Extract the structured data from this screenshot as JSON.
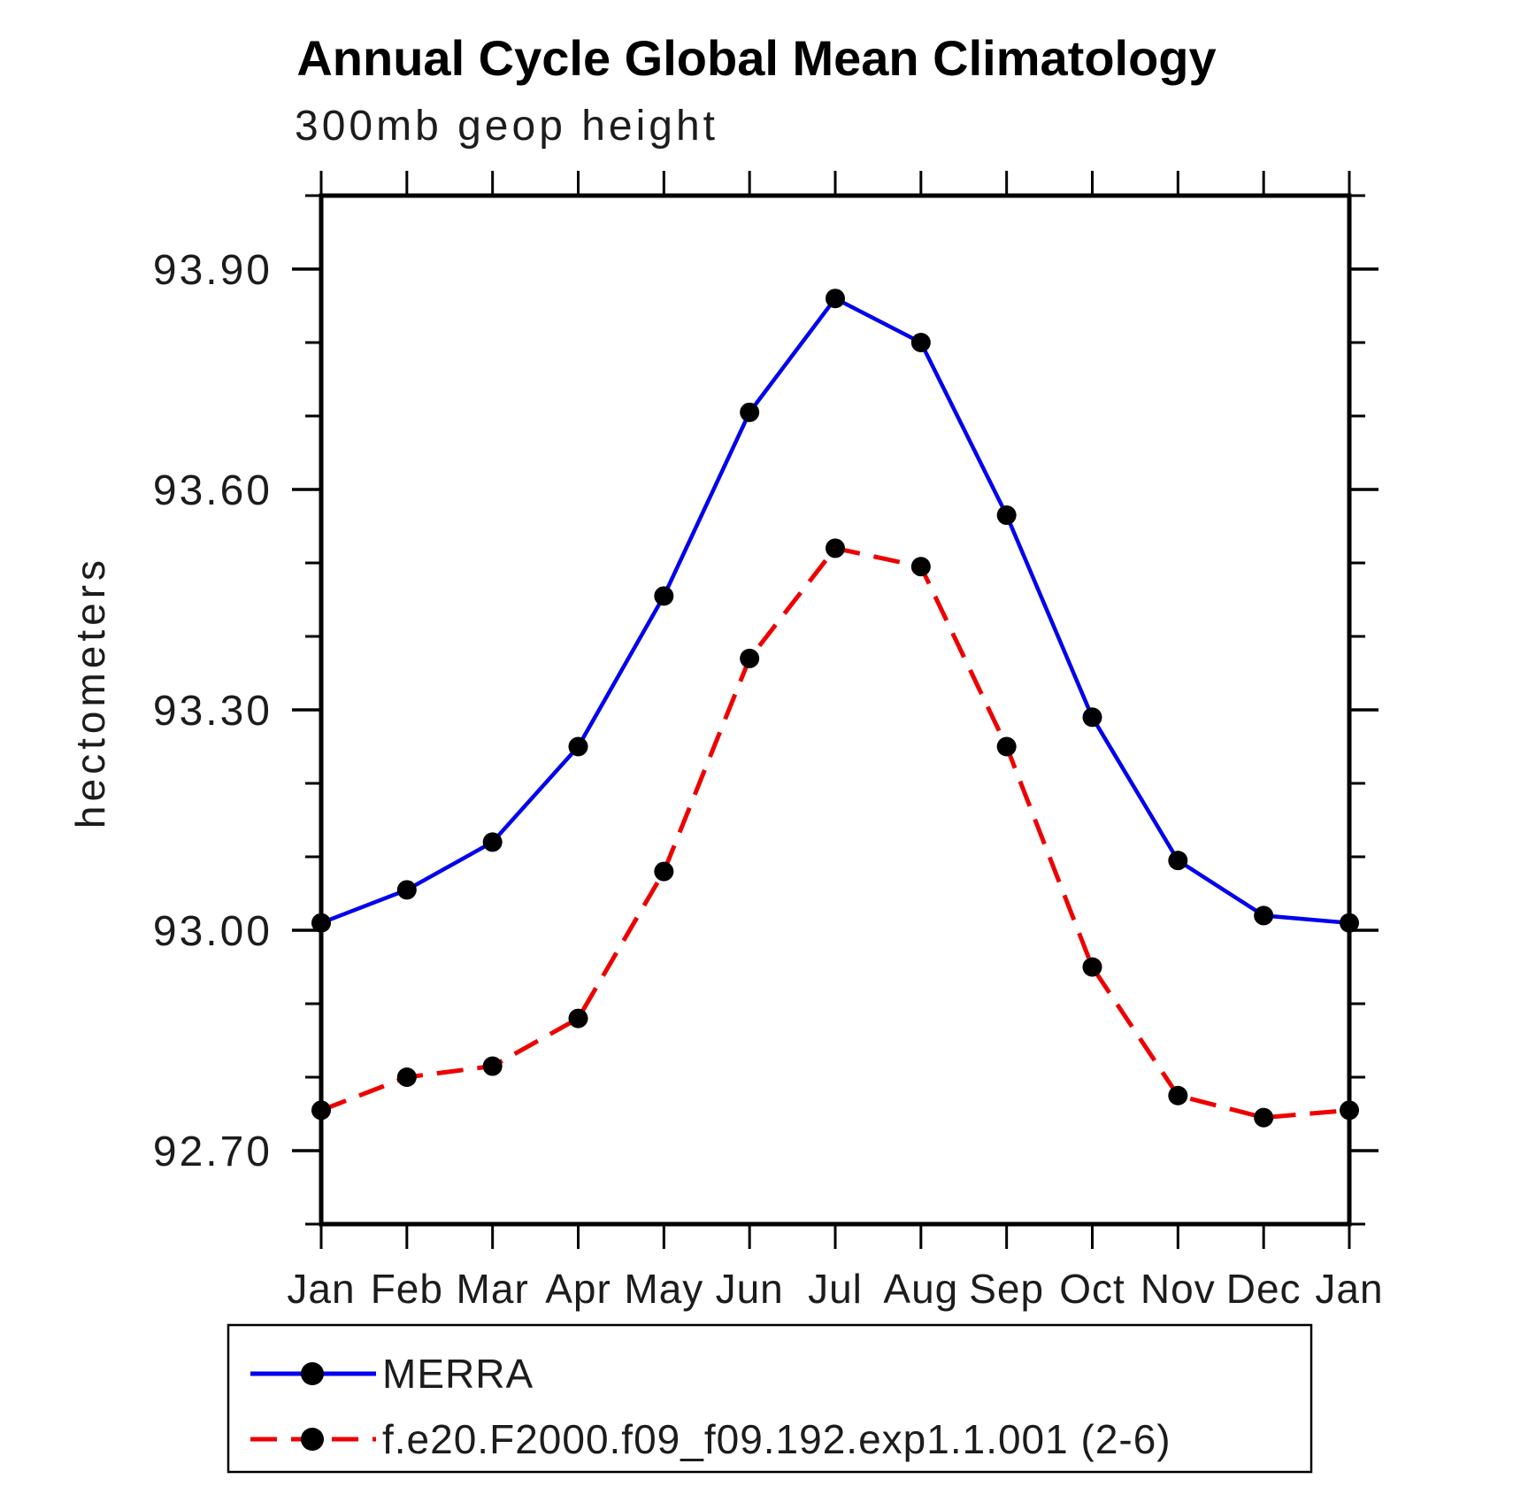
{
  "chart_data": {
    "type": "line",
    "title": "Annual Cycle Global Mean Climatology",
    "subtitle": "300mb geop height",
    "ylabel": "hectometers",
    "xlabel": "",
    "categories": [
      "Jan",
      "Feb",
      "Mar",
      "Apr",
      "May",
      "Jun",
      "Jul",
      "Aug",
      "Sep",
      "Oct",
      "Nov",
      "Dec",
      "Jan"
    ],
    "ylim": [
      92.6,
      94.0
    ],
    "y_major_ticks": [
      {
        "value": 93.9,
        "label": "93.90"
      },
      {
        "value": 93.6,
        "label": "93.60"
      },
      {
        "value": 93.3,
        "label": "93.30"
      },
      {
        "value": 93.0,
        "label": "93.00"
      },
      {
        "value": 92.7,
        "label": "92.70"
      }
    ],
    "y_minor_step": 0.1,
    "grid": false,
    "frame": "box-with-outward-ticks",
    "legend_position": "bottom-box",
    "series": [
      {
        "name": "MERRA",
        "color": "#0000ee",
        "line_style": "solid",
        "marker": "filled-circle",
        "marker_color": "#000000",
        "values": [
          93.01,
          93.055,
          93.12,
          93.25,
          93.455,
          93.705,
          93.86,
          93.8,
          93.565,
          93.29,
          93.095,
          93.02,
          93.01
        ]
      },
      {
        "name": "f.e20.F2000.f09_f09.192.exp1.1.001 (2-6)",
        "color": "#ee0000",
        "line_style": "dashed",
        "marker": "filled-circle",
        "marker_color": "#000000",
        "values": [
          92.755,
          92.8,
          92.815,
          92.88,
          93.08,
          93.37,
          93.52,
          93.495,
          93.25,
          92.95,
          92.775,
          92.745,
          92.755
        ]
      }
    ]
  }
}
